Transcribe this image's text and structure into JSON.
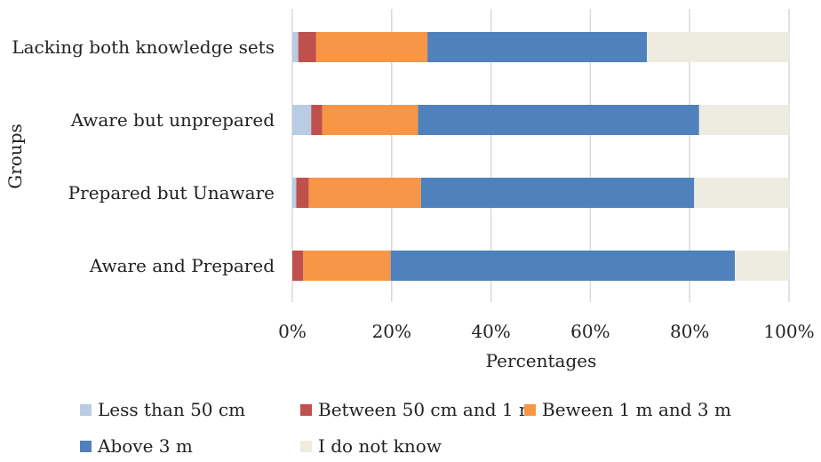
{
  "chart_data": {
    "type": "bar",
    "orientation": "horizontal",
    "stacked": "percent",
    "xlabel": "Percentages",
    "ylabel": "Groups",
    "xlim": [
      0,
      100
    ],
    "x_ticks": [
      "0%",
      "20%",
      "40%",
      "60%",
      "80%",
      "100%"
    ],
    "grid": "vertical",
    "legend_position": "bottom",
    "categories": [
      "Lacking both knowledge sets",
      "Aware but unprepared",
      "Prepared but Unaware",
      "Aware and Prepared"
    ],
    "series": [
      {
        "name": "Less than 50 cm",
        "color": "#B8CCE4",
        "values": [
          1.2,
          3.8,
          0.8,
          0.0
        ]
      },
      {
        "name": "Between 50 cm and 1 m",
        "color": "#C0504D",
        "values": [
          3.6,
          2.2,
          2.5,
          2.2
        ]
      },
      {
        "name": "Beween 1 m and 3 m",
        "color": "#F79646",
        "values": [
          22.4,
          19.3,
          22.6,
          17.6
        ]
      },
      {
        "name": "Above 3 m",
        "color": "#4F81BD",
        "values": [
          44.2,
          56.6,
          55.0,
          69.3
        ]
      },
      {
        "name": "I do not know",
        "color": "#EEECE1",
        "values": [
          28.6,
          18.1,
          19.1,
          10.9
        ]
      }
    ]
  }
}
